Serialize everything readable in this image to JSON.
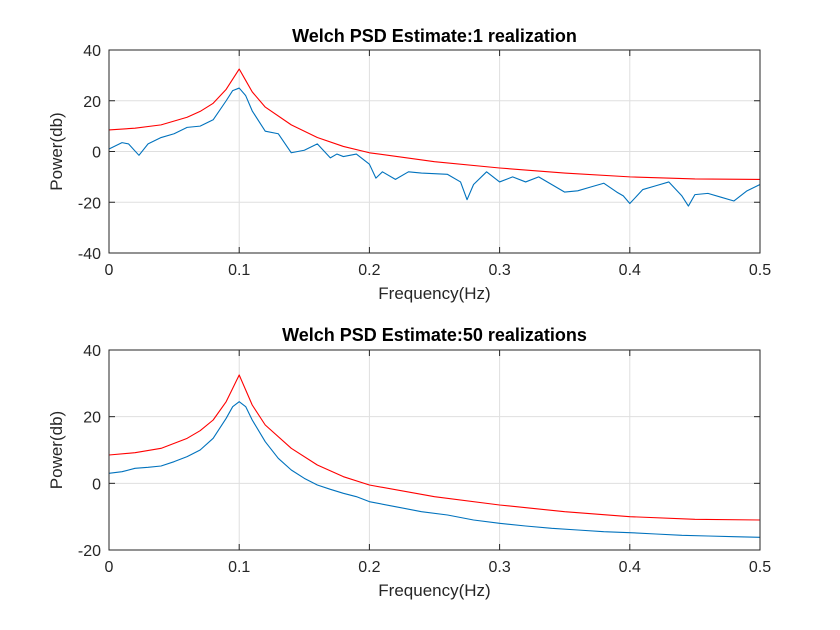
{
  "chart_data": [
    {
      "type": "line",
      "title": "Welch PSD Estimate:1 realization",
      "xlabel": "Frequency(Hz)",
      "ylabel": "Power(db)",
      "xlim": [
        0,
        0.5
      ],
      "ylim": [
        -40,
        40
      ],
      "xticks": [
        0,
        0.1,
        0.2,
        0.3,
        0.4,
        0.5
      ],
      "yticks": [
        -40,
        -20,
        0,
        20,
        40
      ],
      "xtick_labels": [
        "0",
        "0.1",
        "0.2",
        "0.3",
        "0.4",
        "0.5"
      ],
      "ytick_labels": [
        "-40",
        "-20",
        "0",
        "20",
        "40"
      ],
      "grid": true,
      "series": [
        {
          "color": "#ff0000",
          "x": [
            0,
            0.02,
            0.04,
            0.06,
            0.07,
            0.08,
            0.09,
            0.095,
            0.1,
            0.105,
            0.11,
            0.12,
            0.14,
            0.16,
            0.18,
            0.2,
            0.25,
            0.3,
            0.35,
            0.4,
            0.45,
            0.5
          ],
          "y": [
            8.5,
            9.2,
            10.5,
            13.5,
            15.8,
            19.0,
            24.5,
            28.5,
            32.5,
            28.0,
            23.5,
            17.5,
            10.5,
            5.5,
            2.0,
            -0.5,
            -4.0,
            -6.5,
            -8.5,
            -10.0,
            -10.8,
            -11.0
          ]
        },
        {
          "color": "#0072bd",
          "x": [
            0,
            0.01,
            0.015,
            0.023,
            0.03,
            0.04,
            0.05,
            0.06,
            0.07,
            0.08,
            0.09,
            0.095,
            0.1,
            0.105,
            0.11,
            0.12,
            0.13,
            0.14,
            0.15,
            0.16,
            0.17,
            0.175,
            0.18,
            0.19,
            0.2,
            0.205,
            0.21,
            0.22,
            0.23,
            0.24,
            0.26,
            0.27,
            0.275,
            0.28,
            0.29,
            0.3,
            0.31,
            0.32,
            0.33,
            0.34,
            0.35,
            0.36,
            0.37,
            0.38,
            0.39,
            0.395,
            0.4,
            0.41,
            0.42,
            0.43,
            0.44,
            0.445,
            0.45,
            0.46,
            0.47,
            0.48,
            0.49,
            0.5
          ],
          "y": [
            1.0,
            3.5,
            3.0,
            -1.5,
            3.0,
            5.5,
            7.0,
            9.5,
            10.0,
            12.5,
            20.0,
            24.0,
            25.0,
            22.0,
            16.0,
            8.0,
            7.0,
            -0.5,
            0.5,
            3.0,
            -2.5,
            -1.0,
            -2.0,
            -1.0,
            -5.0,
            -10.5,
            -8.0,
            -11.0,
            -8.0,
            -8.5,
            -9.0,
            -12.0,
            -19.0,
            -13.0,
            -8.0,
            -12.0,
            -10.0,
            -12.0,
            -10.0,
            -13.0,
            -16.0,
            -15.5,
            -14.0,
            -12.5,
            -16.0,
            -17.5,
            -20.5,
            -15.0,
            -13.5,
            -12.0,
            -17.5,
            -21.5,
            -17.0,
            -16.5,
            -18.0,
            -19.5,
            -15.5,
            -13.0
          ]
        }
      ]
    },
    {
      "type": "line",
      "title": "Welch PSD Estimate:50 realizations",
      "xlabel": "Frequency(Hz)",
      "ylabel": "Power(db)",
      "xlim": [
        0,
        0.5
      ],
      "ylim": [
        -20,
        40
      ],
      "xticks": [
        0,
        0.1,
        0.2,
        0.3,
        0.4,
        0.5
      ],
      "yticks": [
        -20,
        0,
        20,
        40
      ],
      "xtick_labels": [
        "0",
        "0.1",
        "0.2",
        "0.3",
        "0.4",
        "0.5"
      ],
      "ytick_labels": [
        "-20",
        "0",
        "20",
        "40"
      ],
      "grid": true,
      "series": [
        {
          "color": "#ff0000",
          "x": [
            0,
            0.02,
            0.04,
            0.06,
            0.07,
            0.08,
            0.09,
            0.095,
            0.1,
            0.105,
            0.11,
            0.12,
            0.14,
            0.16,
            0.18,
            0.2,
            0.25,
            0.3,
            0.35,
            0.4,
            0.45,
            0.5
          ],
          "y": [
            8.5,
            9.2,
            10.5,
            13.5,
            15.8,
            19.0,
            24.5,
            28.5,
            32.5,
            28.0,
            23.5,
            17.5,
            10.5,
            5.5,
            2.0,
            -0.5,
            -4.0,
            -6.5,
            -8.5,
            -10.0,
            -10.8,
            -11.0
          ]
        },
        {
          "color": "#0072bd",
          "x": [
            0,
            0.01,
            0.02,
            0.03,
            0.04,
            0.05,
            0.06,
            0.07,
            0.08,
            0.09,
            0.095,
            0.1,
            0.105,
            0.11,
            0.12,
            0.13,
            0.14,
            0.15,
            0.16,
            0.17,
            0.18,
            0.19,
            0.2,
            0.22,
            0.24,
            0.26,
            0.28,
            0.3,
            0.32,
            0.34,
            0.36,
            0.38,
            0.4,
            0.42,
            0.44,
            0.46,
            0.48,
            0.5
          ],
          "y": [
            3.0,
            3.5,
            4.5,
            4.8,
            5.2,
            6.5,
            8.0,
            10.0,
            13.5,
            19.5,
            23.0,
            24.5,
            23.0,
            19.0,
            12.5,
            7.5,
            4.0,
            1.5,
            -0.5,
            -1.8,
            -3.0,
            -4.0,
            -5.5,
            -7.0,
            -8.5,
            -9.5,
            -11.0,
            -12.0,
            -12.8,
            -13.5,
            -14.0,
            -14.5,
            -14.8,
            -15.2,
            -15.6,
            -15.8,
            -16.0,
            -16.2
          ]
        }
      ]
    }
  ]
}
